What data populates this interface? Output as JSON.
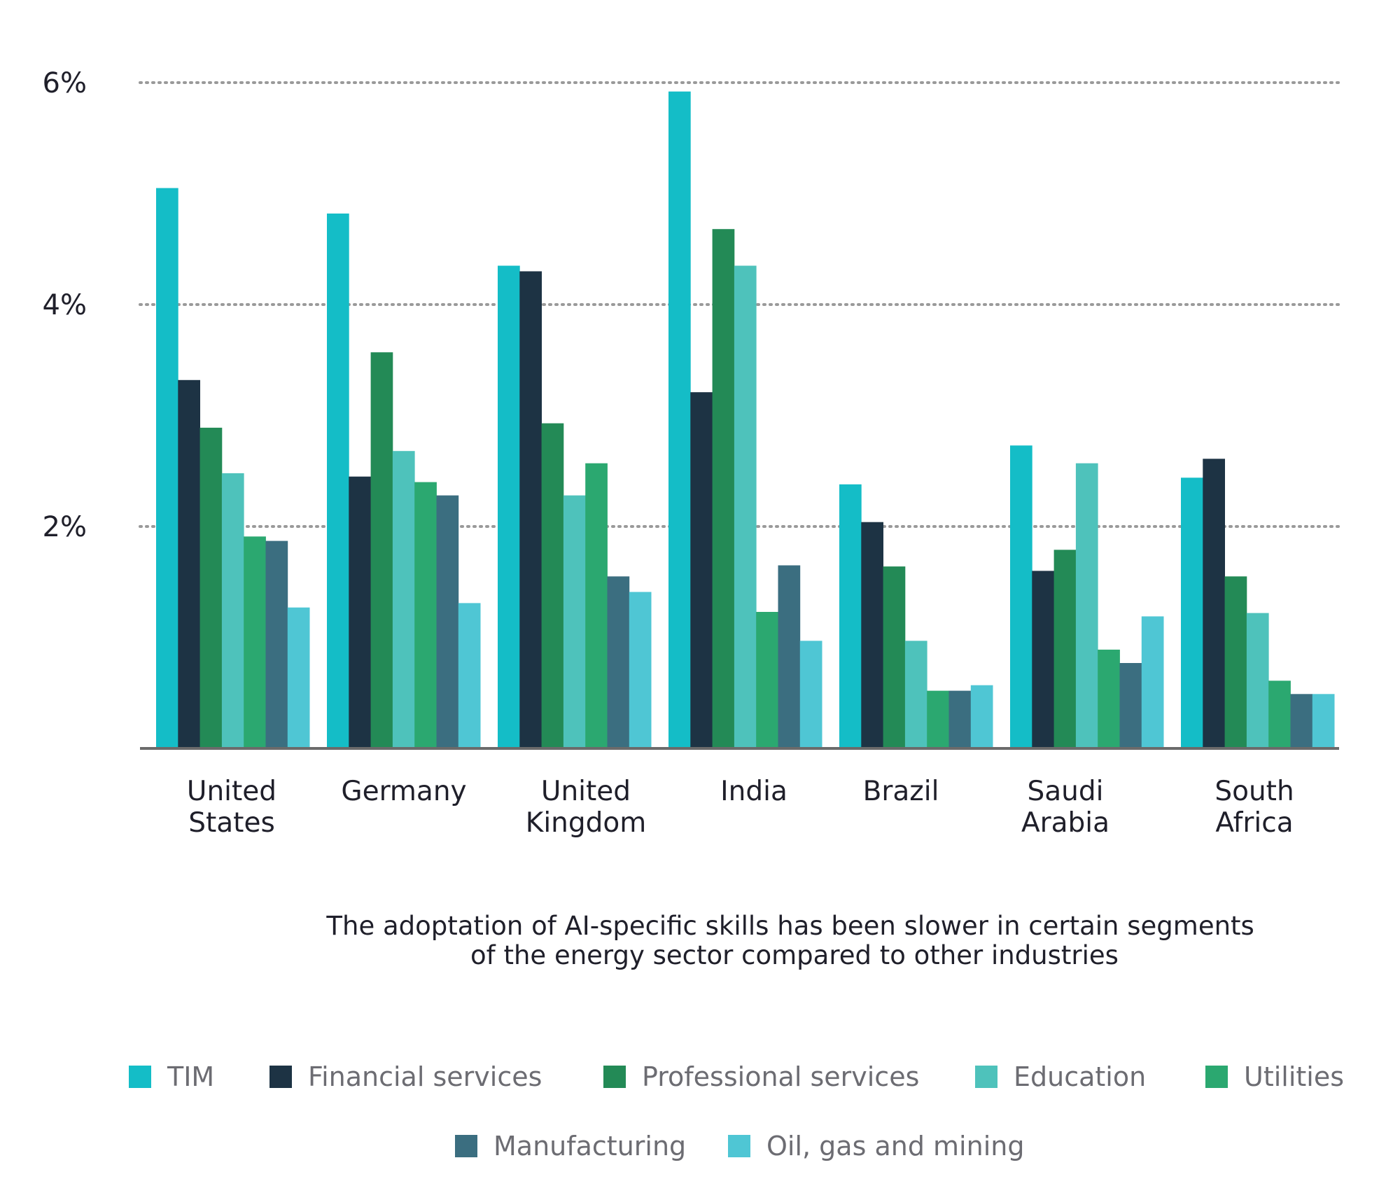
{
  "chart_data": {
    "type": "bar",
    "caption": "The adoptation of AI-specific skills has been slower in certain segments of the energy sector compared to other industries",
    "caption_lines": [
      "The adoptation of AI-specific skills has been slower in certain segments",
      "of the energy sector compared to other industries"
    ],
    "categories": [
      "United States",
      "Germany",
      "United Kingdom",
      "India",
      "Brazil",
      "Saudi Arabia",
      "South Africa"
    ],
    "category_label_lines": [
      [
        "United",
        "States"
      ],
      [
        "Germany"
      ],
      [
        "United",
        "Kingdom"
      ],
      [
        "India"
      ],
      [
        "Brazil"
      ],
      [
        "Saudi",
        "Arabia"
      ],
      [
        "South",
        "Africa"
      ]
    ],
    "series": [
      {
        "name": "TIM",
        "color": "#14bdc7",
        "values": [
          5.05,
          4.82,
          4.35,
          5.92,
          2.38,
          2.73,
          2.44
        ]
      },
      {
        "name": "Financial services",
        "color": "#1d3344",
        "values": [
          3.32,
          2.45,
          4.3,
          3.21,
          2.04,
          1.6,
          2.61
        ]
      },
      {
        "name": "Professional services",
        "color": "#238a56",
        "values": [
          2.89,
          3.57,
          2.93,
          4.68,
          1.64,
          1.79,
          1.55
        ]
      },
      {
        "name": "Education",
        "color": "#4ec2bb",
        "values": [
          2.48,
          2.68,
          2.28,
          4.35,
          0.97,
          2.57,
          1.22
        ]
      },
      {
        "name": "Utilities",
        "color": "#2ba870",
        "values": [
          1.91,
          2.4,
          2.57,
          1.23,
          0.52,
          0.89,
          0.61
        ]
      },
      {
        "name": "Manufacturing",
        "color": "#3b6e80",
        "values": [
          1.87,
          2.28,
          1.55,
          1.65,
          0.52,
          0.77,
          0.49
        ]
      },
      {
        "name": "Oil, gas and mining",
        "color": "#4fc6d4",
        "values": [
          1.27,
          1.31,
          1.41,
          0.97,
          0.57,
          1.19,
          0.49
        ]
      }
    ],
    "y_ticks": [
      "2%",
      "4%",
      "6%"
    ],
    "y_tick_values": [
      2,
      4,
      6
    ],
    "ylim": [
      0,
      6
    ],
    "grid": "dotted horizontal",
    "legend_position": "bottom"
  }
}
